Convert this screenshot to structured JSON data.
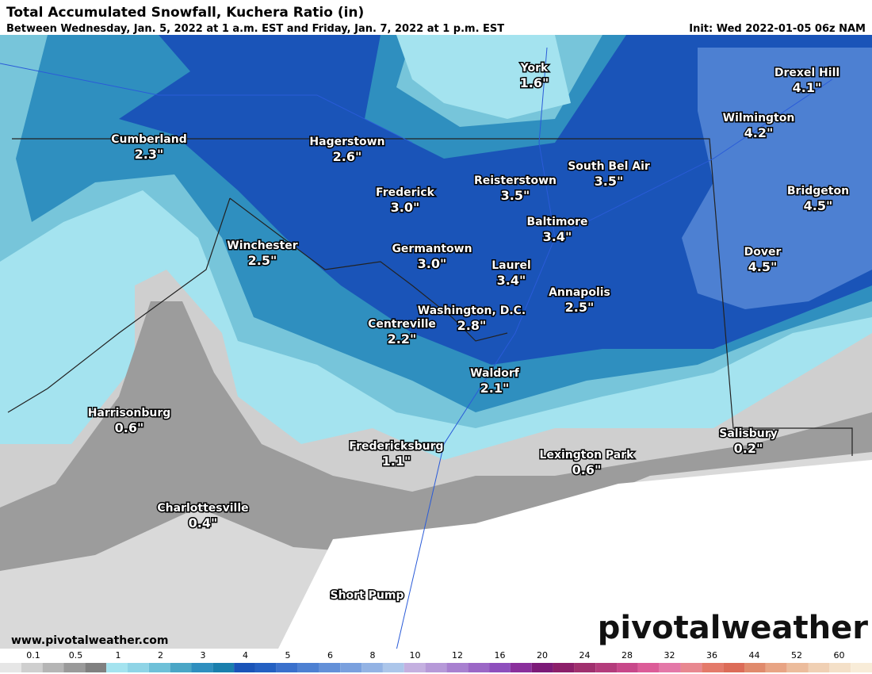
{
  "header": {
    "title": "Total Accumulated Snowfall, Kuchera Ratio (in)",
    "subtitle": "Between Wednesday, Jan. 5, 2022 at 1 a.m. EST and Friday, Jan. 7, 2022 at 1 p.m. EST",
    "init": "Init: Wed 2022-01-05 06z NAM"
  },
  "cities": [
    {
      "name": "York",
      "value": "1.6\""
    },
    {
      "name": "Drexel Hill",
      "value": "4.1\""
    },
    {
      "name": "Wilmington",
      "value": "4.2\""
    },
    {
      "name": "Cumberland",
      "value": "2.3\""
    },
    {
      "name": "Hagerstown",
      "value": "2.6\""
    },
    {
      "name": "South Bel Air",
      "value": "3.5\""
    },
    {
      "name": "Reisterstown",
      "value": "3.5\""
    },
    {
      "name": "Frederick",
      "value": "3.0\""
    },
    {
      "name": "Bridgeton",
      "value": "4.5\""
    },
    {
      "name": "Baltimore",
      "value": "3.4\""
    },
    {
      "name": "Winchester",
      "value": "2.5\""
    },
    {
      "name": "Germantown",
      "value": "3.0\""
    },
    {
      "name": "Dover",
      "value": "4.5\""
    },
    {
      "name": "Laurel",
      "value": "3.4\""
    },
    {
      "name": "Annapolis",
      "value": "2.5\""
    },
    {
      "name": "Washington, D.C.",
      "value": "2.8\""
    },
    {
      "name": "Centreville",
      "value": "2.2\""
    },
    {
      "name": "Waldorf",
      "value": "2.1\""
    },
    {
      "name": "Harrisonburg",
      "value": "0.6\""
    },
    {
      "name": "Salisbury",
      "value": "0.2\""
    },
    {
      "name": "Fredericksburg",
      "value": "1.1\""
    },
    {
      "name": "Lexington Park",
      "value": "0.6\""
    },
    {
      "name": "Charlottesville",
      "value": "0.4\""
    },
    {
      "name": "Short Pump"
    }
  ],
  "footer": {
    "url": "www.pivotalweather.com",
    "logo": "pivotalweather"
  },
  "legend": [
    "0.1",
    "0.5",
    "1",
    "2",
    "3",
    "4",
    "5",
    "6",
    "8",
    "10",
    "12",
    "16",
    "20",
    "24",
    "28",
    "32",
    "36",
    "44",
    "52",
    "60"
  ]
}
